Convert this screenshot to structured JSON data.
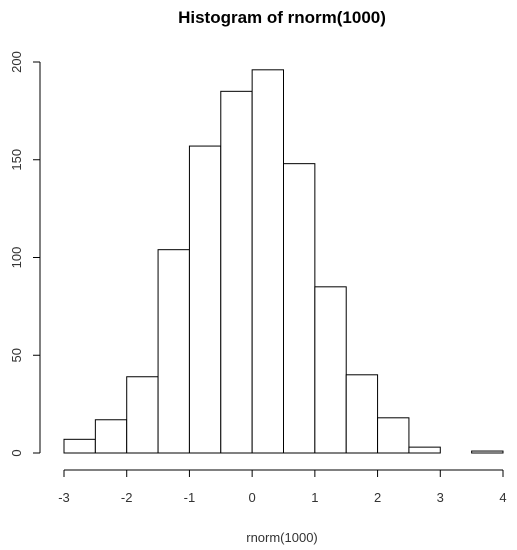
{
  "chart_data": {
    "type": "bar",
    "title": "Histogram of rnorm(1000)",
    "xlabel": "rnorm(1000)",
    "ylabel": "",
    "xlim": [
      -3,
      4
    ],
    "ylim": [
      0,
      200
    ],
    "x_ticks": [
      "-3",
      "-2",
      "-1",
      "0",
      "1",
      "2",
      "3",
      "4"
    ],
    "y_ticks": [
      "0",
      "50",
      "100",
      "150",
      "200"
    ],
    "bins": [
      {
        "start": -3.0,
        "end": -2.5,
        "count": 7
      },
      {
        "start": -2.5,
        "end": -2.0,
        "count": 17
      },
      {
        "start": -2.0,
        "end": -1.5,
        "count": 39
      },
      {
        "start": -1.5,
        "end": -1.0,
        "count": 104
      },
      {
        "start": -1.0,
        "end": -0.5,
        "count": 157
      },
      {
        "start": -0.5,
        "end": 0.0,
        "count": 185
      },
      {
        "start": 0.0,
        "end": 0.5,
        "count": 196
      },
      {
        "start": 0.5,
        "end": 1.0,
        "count": 148
      },
      {
        "start": 1.0,
        "end": 1.5,
        "count": 85
      },
      {
        "start": 1.5,
        "end": 2.0,
        "count": 40
      },
      {
        "start": 2.0,
        "end": 2.5,
        "count": 18
      },
      {
        "start": 2.5,
        "end": 3.0,
        "count": 3
      },
      {
        "start": 3.0,
        "end": 3.5,
        "count": 0
      },
      {
        "start": 3.5,
        "end": 4.0,
        "count": 1
      }
    ],
    "grid": false,
    "legend": "none"
  }
}
